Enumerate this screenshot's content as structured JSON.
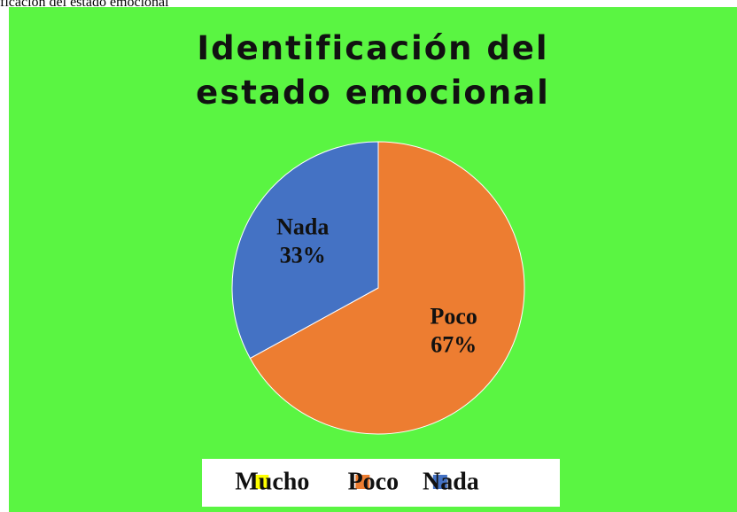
{
  "caption": "ficación del estado emocional",
  "chart_data": {
    "type": "pie",
    "title": "Identificación del estado emocional",
    "categories": [
      "Mucho",
      "Poco",
      "Nada"
    ],
    "values": [
      0,
      67,
      33
    ],
    "value_labels": [
      "0%",
      "67%",
      "33%"
    ],
    "colors": [
      "#ffff00",
      "#ed7d31",
      "#4472c4"
    ],
    "legend": "bottom"
  }
}
